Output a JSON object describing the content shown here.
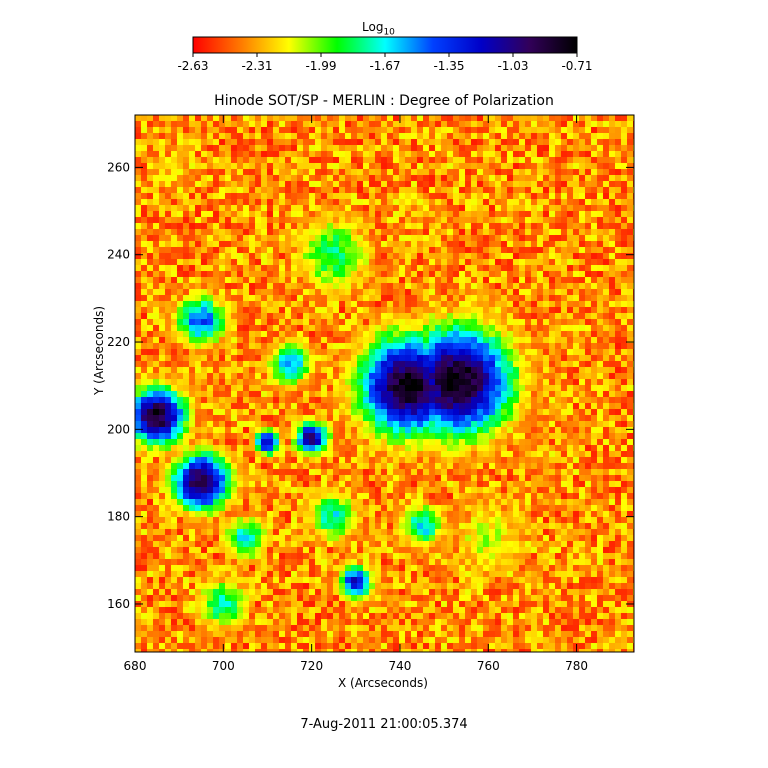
{
  "chart_data": {
    "type": "heatmap",
    "title": "Hinode SOT/SP - MERLIN : Degree of Polarization",
    "xlabel": "X (Arcseconds)",
    "ylabel": "Y (Arcseconds)",
    "xlim": [
      680,
      793
    ],
    "ylim": [
      149,
      272
    ],
    "xticks": [
      "680",
      "700",
      "720",
      "740",
      "760",
      "780"
    ],
    "yticks": [
      "160",
      "180",
      "200",
      "220",
      "240",
      "260"
    ],
    "colorbar": {
      "title_main": "Log",
      "title_sub": "10",
      "range": [
        -2.63,
        -0.71
      ],
      "ticks": [
        "-2.63",
        "-2.31",
        "-1.99",
        "-1.67",
        "-1.35",
        "-1.03",
        "-0.71"
      ],
      "colors": [
        "#ff0000",
        "#ff7a00",
        "#ffff00",
        "#00ff00",
        "#00ffff",
        "#0040ff",
        "#0000c8",
        "#32005a",
        "#000000"
      ]
    },
    "features": [
      {
        "x": 753,
        "y": 211,
        "r": 13,
        "level": -0.71
      },
      {
        "x": 742,
        "y": 210,
        "r": 12,
        "level": -0.75
      },
      {
        "x": 685,
        "y": 203,
        "r": 7,
        "level": -0.8
      },
      {
        "x": 695,
        "y": 188,
        "r": 7,
        "level": -0.85
      },
      {
        "x": 720,
        "y": 198,
        "r": 4,
        "level": -1.0
      },
      {
        "x": 710,
        "y": 197,
        "r": 3,
        "level": -1.1
      },
      {
        "x": 730,
        "y": 165,
        "r": 4,
        "level": -1.2
      },
      {
        "x": 745,
        "y": 178,
        "r": 5,
        "level": -1.6
      },
      {
        "x": 725,
        "y": 180,
        "r": 6,
        "level": -1.7
      },
      {
        "x": 700,
        "y": 160,
        "r": 6,
        "level": -1.7
      },
      {
        "x": 725,
        "y": 240,
        "r": 9,
        "level": -1.8
      },
      {
        "x": 695,
        "y": 225,
        "r": 6,
        "level": -1.4
      },
      {
        "x": 715,
        "y": 215,
        "r": 5,
        "level": -1.5
      },
      {
        "x": 705,
        "y": 175,
        "r": 5,
        "level": -1.6
      },
      {
        "x": 760,
        "y": 175,
        "r": 10,
        "level": -2.1
      },
      {
        "x": 688,
        "y": 260,
        "r": 5,
        "level": -2.2
      }
    ]
  },
  "timestamp": "7-Aug-2011 21:00:05.374"
}
